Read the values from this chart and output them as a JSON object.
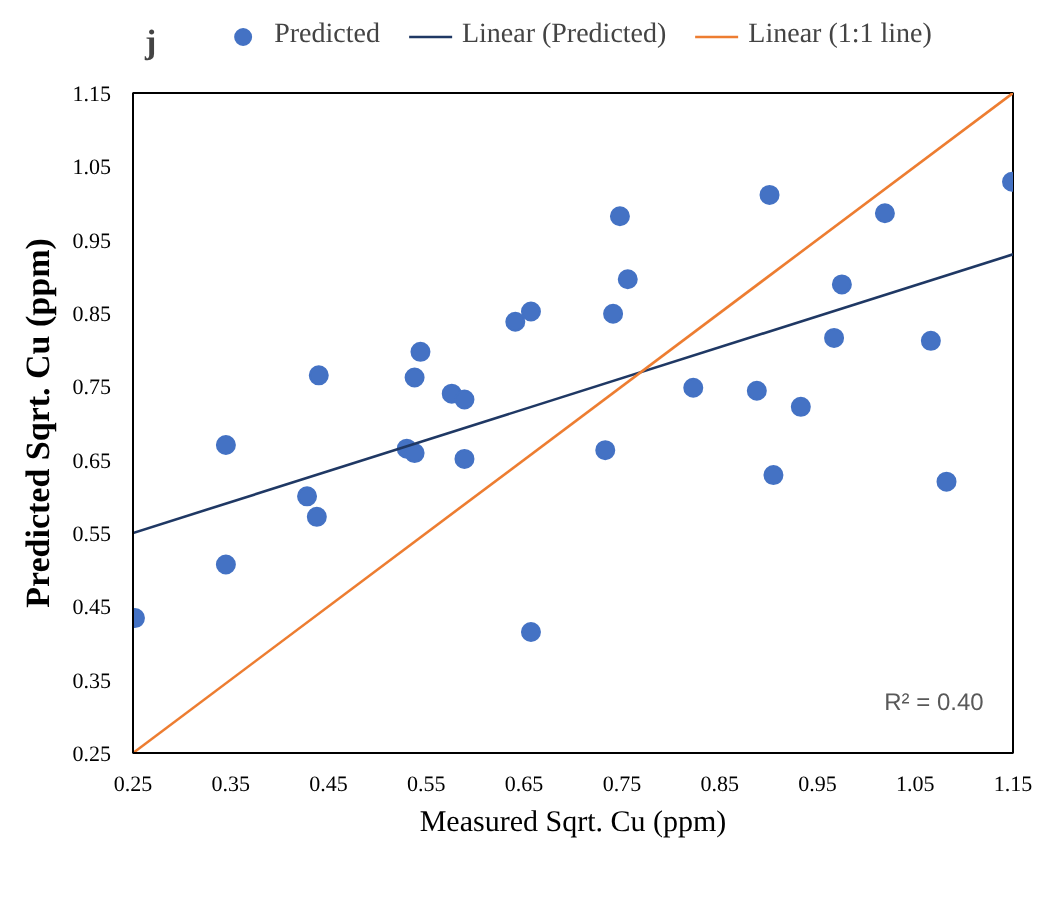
{
  "chart_data": {
    "type": "scatter",
    "xlabel": "Measured Sqrt. Cu (ppm)",
    "ylabel": "Predicted Sqrt. Cu (ppm)",
    "annotations": [
      "j",
      "R² = 0.40"
    ],
    "series": [
      {
        "name": "Predicted",
        "type": "scatter",
        "color": "#4472c4",
        "marker": "circle",
        "x": [
          0.252,
          0.345,
          0.345,
          0.428,
          0.438,
          0.44,
          0.53,
          0.538,
          0.538,
          0.544,
          0.576,
          0.589,
          0.589,
          0.641,
          0.657,
          0.657,
          0.748,
          0.756,
          0.741,
          0.733,
          0.823,
          0.901,
          0.888,
          0.905,
          0.933,
          0.967,
          0.975,
          1.019,
          1.066,
          1.082,
          1.149
        ],
        "values": [
          0.434,
          0.507,
          0.67,
          0.6,
          0.572,
          0.765,
          0.665,
          0.659,
          0.762,
          0.797,
          0.74,
          0.732,
          0.651,
          0.838,
          0.852,
          0.415,
          0.982,
          0.896,
          0.849,
          0.663,
          0.748,
          1.011,
          0.744,
          0.629,
          0.722,
          0.816,
          0.889,
          0.986,
          0.812,
          0.62,
          1.029
        ]
      },
      {
        "name": "Linear (Predicted)",
        "type": "line",
        "color": "#1f3864",
        "x": [
          0.25,
          1.15
        ],
        "values": [
          0.55,
          0.93
        ]
      },
      {
        "name": "Linear (1:1 line)",
        "type": "line",
        "color": "#ed7d31",
        "x": [
          0.25,
          1.15
        ],
        "values": [
          0.25,
          1.15
        ]
      }
    ],
    "xlim": [
      0.25,
      1.15
    ],
    "ylim": [
      0.25,
      1.15
    ],
    "xticks": [
      {
        "value": 0.25,
        "label": "0.25"
      },
      {
        "value": 0.35,
        "label": "0.35"
      },
      {
        "value": 0.45,
        "label": "0.45"
      },
      {
        "value": 0.55,
        "label": "0.55"
      },
      {
        "value": 0.65,
        "label": "0.65"
      },
      {
        "value": 0.75,
        "label": "0.75"
      },
      {
        "value": 0.85,
        "label": "0.85"
      },
      {
        "value": 0.95,
        "label": "0.95"
      },
      {
        "value": 1.05,
        "label": "1.05"
      },
      {
        "value": 1.15,
        "label": "1.15"
      }
    ],
    "yticks": [
      {
        "value": 0.25,
        "label": "0.25"
      },
      {
        "value": 0.35,
        "label": "0.35"
      },
      {
        "value": 0.45,
        "label": "0.45"
      },
      {
        "value": 0.55,
        "label": "0.55"
      },
      {
        "value": 0.65,
        "label": "0.65"
      },
      {
        "value": 0.75,
        "label": "0.75"
      },
      {
        "value": 0.85,
        "label": "0.85"
      },
      {
        "value": 0.95,
        "label": "0.95"
      },
      {
        "value": 1.05,
        "label": "1.05"
      },
      {
        "value": 1.15,
        "label": "1.15"
      }
    ],
    "grid": false,
    "legend": "top"
  }
}
